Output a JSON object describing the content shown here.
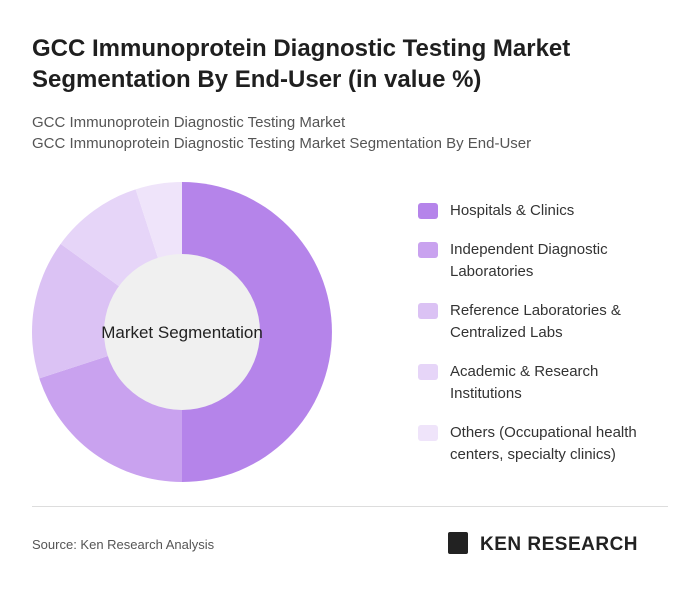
{
  "chart_data": {
    "type": "donut",
    "title": "GCC Immunoprotein Diagnostic Testing Market Segmentation By End-User (in value %)",
    "subtitle": [
      "GCC Immunoprotein Diagnostic Testing Market",
      "GCC Immunoprotein Diagnostic Testing Market Segmentation By End-User"
    ],
    "center_label": "Market Segmentation",
    "categories": [
      "Hospitals & Clinics",
      "Independent Diagnostic Laboratories",
      "Reference Laboratories & Centralized Labs",
      "Academic & Research Institutions",
      "Others (Occupational health centers, specialty clinics)"
    ],
    "values": [
      50,
      20,
      15,
      10,
      5
    ],
    "colors": [
      "#b584ea",
      "#c9a2ef",
      "#dbc2f4",
      "#e6d5f8",
      "#efe4fa"
    ],
    "source": "Source: Ken Research Analysis",
    "logo": "KEN RESEARCH"
  }
}
